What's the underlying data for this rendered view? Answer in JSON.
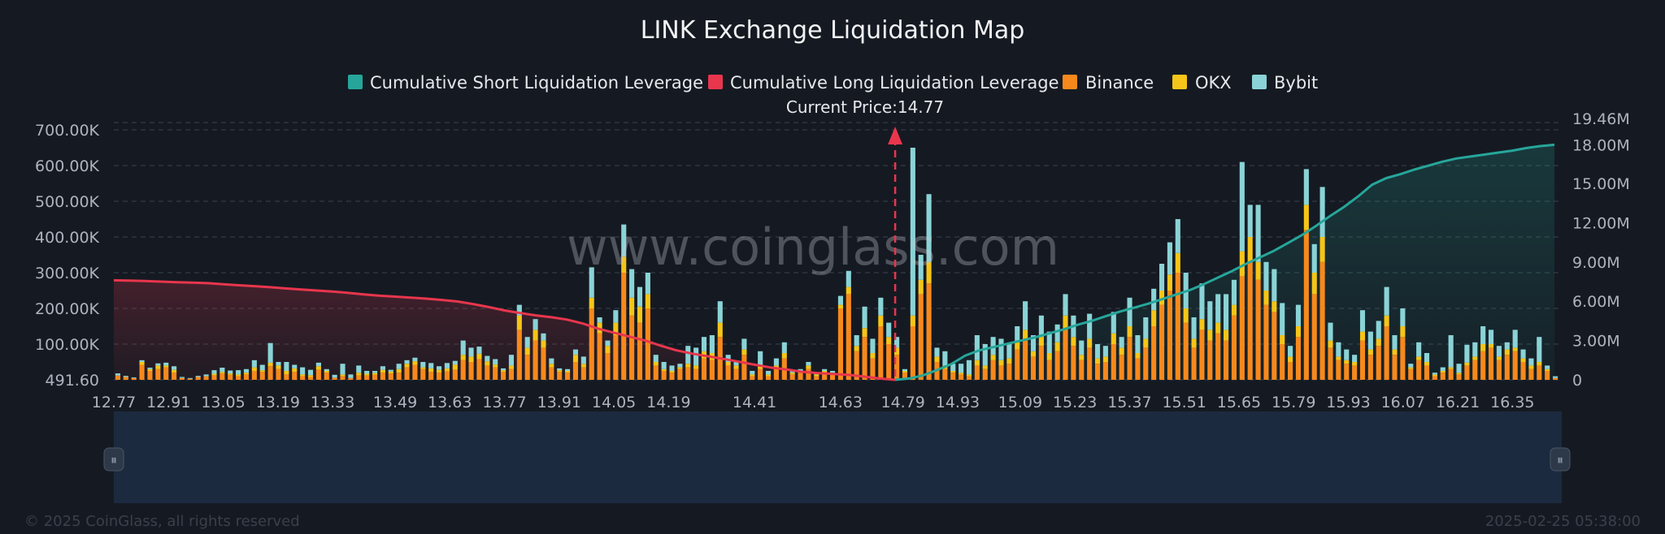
{
  "chart_data": {
    "type": "bar",
    "title": "LINK Exchange Liquidation Map",
    "current_price_label": "Current Price:14.77",
    "current_price": 14.77,
    "watermark": "www.coinglass.com",
    "legend": [
      {
        "name": "Cumulative Short Liquidation Leverage",
        "color": "#26a69a"
      },
      {
        "name": "Cumulative Long Liquidation Leverage",
        "color": "#e8364d"
      },
      {
        "name": "Binance",
        "color": "#f7891c"
      },
      {
        "name": "OKX",
        "color": "#f5c518"
      },
      {
        "name": "Bybit",
        "color": "#8ad3d6"
      }
    ],
    "x_ticks": [
      "12.77",
      "12.91",
      "13.05",
      "13.19",
      "13.33",
      "13.49",
      "13.63",
      "13.77",
      "13.91",
      "14.05",
      "14.19",
      "14.41",
      "14.63",
      "14.79",
      "14.93",
      "15.09",
      "15.23",
      "15.37",
      "15.51",
      "15.65",
      "15.79",
      "15.93",
      "16.07",
      "16.21",
      "16.35"
    ],
    "x_range": [
      12.77,
      16.47
    ],
    "y_left_ticks": [
      "491.60",
      "100.00K",
      "200.00K",
      "300.00K",
      "400.00K",
      "500.00K",
      "600.00K",
      "700.00K"
    ],
    "y_left_range": [
      0,
      700000
    ],
    "y_right_ticks": [
      "0",
      "3.00M",
      "6.00M",
      "9.00M",
      "12.00M",
      "15.00M",
      "18.00M",
      "19.46M"
    ],
    "y_right_range": [
      0,
      19460000
    ],
    "bar_values_k": [
      [
        12,
        0,
        6
      ],
      [
        8,
        0,
        3
      ],
      [
        5,
        0,
        2
      ],
      [
        42,
        8,
        5
      ],
      [
        25,
        5,
        4
      ],
      [
        30,
        10,
        6
      ],
      [
        35,
        5,
        8
      ],
      [
        20,
        8,
        10
      ],
      [
        5,
        0,
        3
      ],
      [
        3,
        0,
        2
      ],
      [
        8,
        0,
        3
      ],
      [
        10,
        0,
        5
      ],
      [
        12,
        5,
        10
      ],
      [
        18,
        4,
        12
      ],
      [
        14,
        4,
        8
      ],
      [
        10,
        5,
        12
      ],
      [
        15,
        5,
        10
      ],
      [
        25,
        10,
        20
      ],
      [
        22,
        5,
        15
      ],
      [
        38,
        10,
        55
      ],
      [
        30,
        10,
        10
      ],
      [
        15,
        10,
        25
      ],
      [
        22,
        10,
        10
      ],
      [
        10,
        5,
        20
      ],
      [
        8,
        5,
        15
      ],
      [
        28,
        10,
        10
      ],
      [
        20,
        5,
        5
      ],
      [
        6,
        0,
        8
      ],
      [
        10,
        5,
        30
      ],
      [
        5,
        0,
        10
      ],
      [
        12,
        8,
        20
      ],
      [
        12,
        5,
        8
      ],
      [
        14,
        5,
        6
      ],
      [
        20,
        8,
        10
      ],
      [
        18,
        5,
        5
      ],
      [
        20,
        10,
        15
      ],
      [
        35,
        10,
        10
      ],
      [
        42,
        10,
        10
      ],
      [
        30,
        5,
        15
      ],
      [
        22,
        10,
        15
      ],
      [
        20,
        8,
        10
      ],
      [
        24,
        8,
        15
      ],
      [
        28,
        15,
        10
      ],
      [
        55,
        15,
        40
      ],
      [
        50,
        15,
        25
      ],
      [
        58,
        15,
        20
      ],
      [
        40,
        12,
        15
      ],
      [
        35,
        8,
        15
      ],
      [
        22,
        5,
        5
      ],
      [
        30,
        10,
        30
      ],
      [
        140,
        40,
        30
      ],
      [
        70,
        20,
        30
      ],
      [
        110,
        30,
        30
      ],
      [
        90,
        20,
        20
      ],
      [
        35,
        10,
        15
      ],
      [
        22,
        5,
        5
      ],
      [
        20,
        5,
        5
      ],
      [
        50,
        20,
        15
      ],
      [
        35,
        10,
        20
      ],
      [
        200,
        30,
        85
      ],
      [
        130,
        30,
        15
      ],
      [
        75,
        20,
        15
      ],
      [
        125,
        35,
        35
      ],
      [
        300,
        45,
        90
      ],
      [
        180,
        50,
        80
      ],
      [
        160,
        45,
        55
      ],
      [
        200,
        40,
        60
      ],
      [
        40,
        10,
        20
      ],
      [
        25,
        5,
        20
      ],
      [
        20,
        5,
        15
      ],
      [
        30,
        5,
        10
      ],
      [
        35,
        10,
        50
      ],
      [
        30,
        10,
        50
      ],
      [
        60,
        20,
        40
      ],
      [
        55,
        20,
        50
      ],
      [
        120,
        40,
        60
      ],
      [
        40,
        10,
        20
      ],
      [
        30,
        10,
        10
      ],
      [
        70,
        15,
        30
      ],
      [
        10,
        5,
        10
      ],
      [
        30,
        10,
        40
      ],
      [
        10,
        5,
        10
      ],
      [
        30,
        10,
        20
      ],
      [
        60,
        15,
        30
      ],
      [
        15,
        5,
        5
      ],
      [
        20,
        5,
        5
      ],
      [
        30,
        10,
        10
      ],
      [
        10,
        5,
        5
      ],
      [
        20,
        5,
        5
      ],
      [
        15,
        5,
        5
      ],
      [
        200,
        10,
        25
      ],
      [
        240,
        20,
        45
      ],
      [
        80,
        15,
        30
      ],
      [
        120,
        25,
        60
      ],
      [
        60,
        15,
        40
      ],
      [
        150,
        30,
        50
      ],
      [
        100,
        20,
        40
      ],
      [
        70,
        20,
        30
      ],
      [
        20,
        5,
        5
      ],
      [
        150,
        30,
        470
      ],
      [
        240,
        40,
        70
      ],
      [
        270,
        60,
        190
      ],
      [
        50,
        15,
        25
      ],
      [
        30,
        10,
        40
      ],
      [
        20,
        5,
        20
      ],
      [
        15,
        5,
        25
      ],
      [
        10,
        5,
        40
      ],
      [
        40,
        15,
        70
      ],
      [
        30,
        10,
        60
      ],
      [
        55,
        15,
        50
      ],
      [
        40,
        15,
        60
      ],
      [
        45,
        15,
        40
      ],
      [
        85,
        20,
        45
      ],
      [
        110,
        30,
        80
      ],
      [
        65,
        15,
        45
      ],
      [
        95,
        25,
        60
      ],
      [
        55,
        20,
        60
      ],
      [
        80,
        25,
        50
      ],
      [
        140,
        40,
        60
      ],
      [
        95,
        25,
        60
      ],
      [
        55,
        15,
        40
      ],
      [
        90,
        25,
        70
      ],
      [
        45,
        15,
        40
      ],
      [
        50,
        15,
        30
      ],
      [
        100,
        30,
        60
      ],
      [
        70,
        20,
        30
      ],
      [
        120,
        30,
        80
      ],
      [
        60,
        15,
        50
      ],
      [
        90,
        25,
        60
      ],
      [
        150,
        45,
        60
      ],
      [
        210,
        40,
        75
      ],
      [
        250,
        45,
        90
      ],
      [
        300,
        55,
        95
      ],
      [
        160,
        40,
        100
      ],
      [
        90,
        25,
        60
      ],
      [
        140,
        30,
        100
      ],
      [
        110,
        30,
        80
      ],
      [
        130,
        30,
        80
      ],
      [
        110,
        30,
        100
      ],
      [
        180,
        30,
        70
      ],
      [
        290,
        70,
        250
      ],
      [
        330,
        70,
        90
      ],
      [
        280,
        50,
        160
      ],
      [
        210,
        40,
        80
      ],
      [
        190,
        30,
        90
      ],
      [
        100,
        25,
        90
      ],
      [
        50,
        15,
        30
      ],
      [
        120,
        30,
        60
      ],
      [
        420,
        70,
        100
      ],
      [
        240,
        60,
        80
      ],
      [
        330,
        70,
        140
      ],
      [
        90,
        20,
        50
      ],
      [
        55,
        10,
        40
      ],
      [
        45,
        10,
        30
      ],
      [
        40,
        10,
        20
      ],
      [
        110,
        25,
        60
      ],
      [
        70,
        15,
        50
      ],
      [
        95,
        20,
        50
      ],
      [
        150,
        30,
        80
      ],
      [
        70,
        15,
        40
      ],
      [
        120,
        30,
        50
      ],
      [
        30,
        5,
        10
      ],
      [
        55,
        10,
        40
      ],
      [
        40,
        10,
        25
      ],
      [
        10,
        5,
        5
      ],
      [
        20,
        5,
        10
      ],
      [
        30,
        5,
        90
      ],
      [
        15,
        5,
        25
      ],
      [
        40,
        8,
        50
      ],
      [
        55,
        10,
        40
      ],
      [
        80,
        20,
        50
      ],
      [
        90,
        10,
        40
      ],
      [
        55,
        10,
        30
      ],
      [
        70,
        15,
        20
      ],
      [
        80,
        10,
        50
      ],
      [
        50,
        10,
        25
      ],
      [
        30,
        10,
        20
      ],
      [
        40,
        10,
        70
      ],
      [
        25,
        5,
        10
      ],
      [
        5,
        0,
        5
      ]
    ],
    "cumulative_long_M": [
      7.6,
      7.58,
      7.55,
      7.5,
      7.45,
      7.42,
      7.38,
      7.3,
      7.22,
      7.15,
      7.07,
      6.98,
      6.9,
      6.82,
      6.74,
      6.64,
      6.52,
      6.42,
      6.35,
      6.28,
      6.2,
      6.1,
      5.98,
      5.78,
      5.55,
      5.3,
      5.1,
      4.92,
      4.78,
      4.6,
      4.3,
      3.9,
      3.6,
      3.3,
      3.0,
      2.6,
      2.25,
      2.0,
      1.8,
      1.6,
      1.38,
      1.15,
      0.95,
      0.8,
      0.62,
      0.52,
      0.45,
      0.38,
      0.25,
      0.1,
      0.0
    ],
    "cumulative_short_M": [
      0.0,
      0.1,
      0.35,
      0.75,
      1.2,
      1.85,
      2.25,
      2.5,
      2.75,
      3.0,
      3.25,
      3.55,
      3.85,
      4.2,
      4.5,
      4.85,
      5.2,
      5.5,
      5.8,
      6.15,
      6.5,
      6.85,
      7.3,
      7.8,
      8.3,
      8.85,
      9.35,
      9.85,
      10.45,
      11.05,
      11.75,
      12.5,
      13.2,
      14.0,
      14.9,
      15.4,
      15.7,
      16.05,
      16.35,
      16.65,
      16.9,
      17.05,
      17.2,
      17.35,
      17.5,
      17.7,
      17.85,
      17.95
    ],
    "copyright": "© 2025 CoinGlass, all rights reserved",
    "timestamp": "2025-02-25 05:38:00"
  }
}
